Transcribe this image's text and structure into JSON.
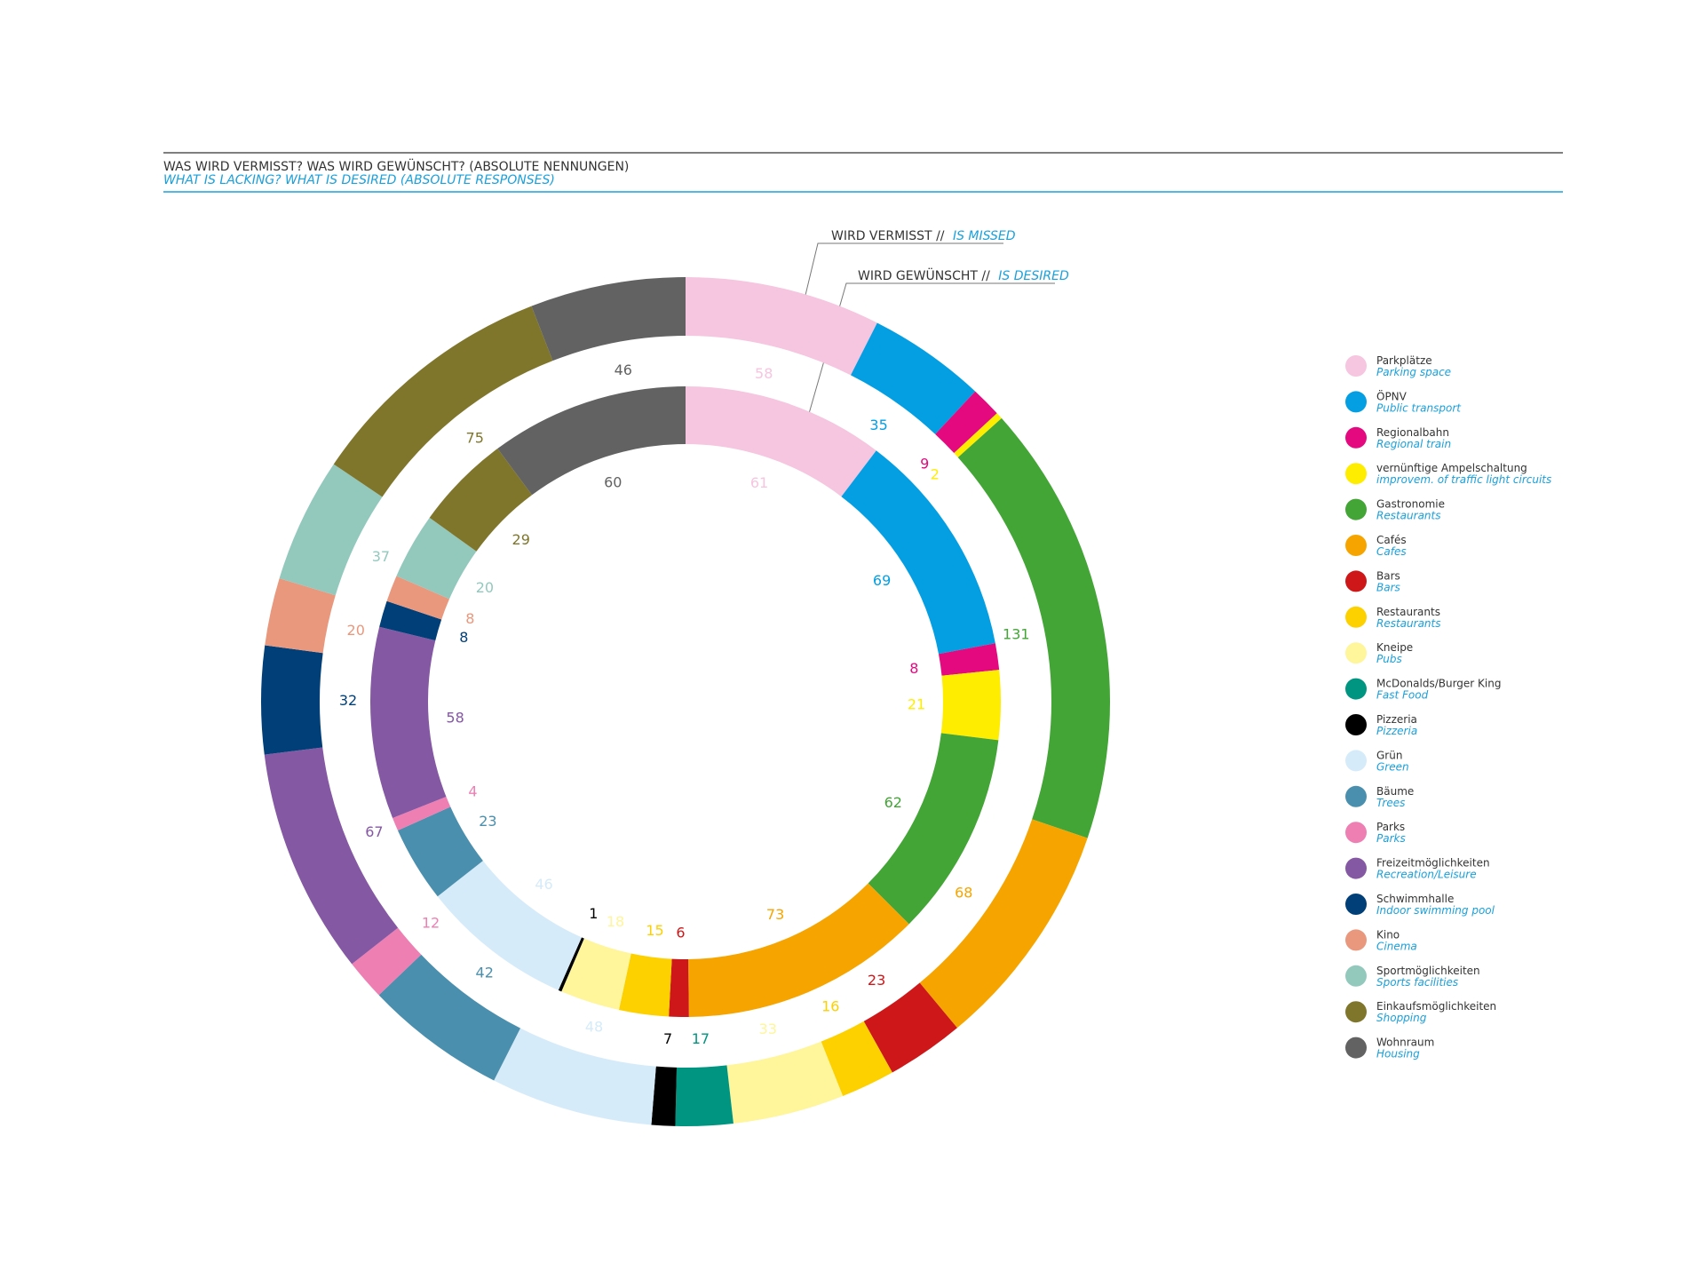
{
  "header": {
    "title_de": "WAS WIRD VERMISST? WAS WIRD GEWÜNSCHT? (ABSOLUTE NENNUNGEN)",
    "title_en": "WHAT IS LACKING? WHAT IS DESIRED (ABSOLUTE RESPONSES)"
  },
  "ring_labels": {
    "outer_de": "WIRD VERMISST //",
    "outer_en": "IS MISSED",
    "inner_de": "WIRD GEWÜNSCHT //",
    "inner_en": "IS DESIRED"
  },
  "colors": {
    "header_rule": "#555555",
    "accent_blue": "#1aa0dc",
    "text_dark": "#333333"
  },
  "chart_data": {
    "type": "pie",
    "variant": "double-ring-donut",
    "categories": [
      {
        "de": "Parkplätze",
        "en": "Parking space",
        "color": "#f6c5df"
      },
      {
        "de": "ÖPNV",
        "en": "Public transport",
        "color": "#049fe3"
      },
      {
        "de": "Regionalbahn",
        "en": "Regional train",
        "color": "#e5097f"
      },
      {
        "de": "vernünftige Ampelschaltung",
        "en": "improvem. of traffic light circuits",
        "color": "#ffed00"
      },
      {
        "de": "Gastronomie",
        "en": "Restaurants",
        "color": "#43a536"
      },
      {
        "de": "Cafés",
        "en": "Cafes",
        "color": "#f6a500"
      },
      {
        "de": "Bars",
        "en": "Bars",
        "color": "#cd1719"
      },
      {
        "de": "Restaurants",
        "en": "Restaurants",
        "color": "#fdd000"
      },
      {
        "de": "Kneipe",
        "en": "Pubs",
        "color": "#fff59b"
      },
      {
        "de": "McDonalds/Burger King",
        "en": "Fast Food",
        "color": "#009581"
      },
      {
        "de": "Pizzeria",
        "en": "Pizzeria",
        "color": "#000000"
      },
      {
        "de": "Grün",
        "en": "Green",
        "color": "#d5ebf9"
      },
      {
        "de": "Bäume",
        "en": "Trees",
        "color": "#4a8fad"
      },
      {
        "de": "Parks",
        "en": "Parks",
        "color": "#ee7fb3"
      },
      {
        "de": "Freizeitmöglichkeiten",
        "en": "Recreation/Leisure",
        "color": "#8458a2"
      },
      {
        "de": "Schwimmhalle",
        "en": "Indoor swimming pool",
        "color": "#003f78"
      },
      {
        "de": "Kino",
        "en": "Cinema",
        "color": "#e9987d"
      },
      {
        "de": "Sportmöglichkeiten",
        "en": "Sports facilities",
        "color": "#93c9bd"
      },
      {
        "de": "Einkaufsmöglichkeiten",
        "en": "Shopping",
        "color": "#7f762c"
      },
      {
        "de": "Wohnraum",
        "en": "Housing",
        "color": "#626262"
      }
    ],
    "series": [
      {
        "ring": "outer",
        "values": [
          58,
          35,
          9,
          2,
          131,
          68,
          23,
          16,
          33,
          17,
          7,
          48,
          42,
          12,
          67,
          32,
          20,
          37,
          75,
          46
        ]
      },
      {
        "ring": "inner",
        "values": [
          61,
          69,
          8,
          21,
          62,
          73,
          6,
          15,
          18,
          0,
          1,
          46,
          23,
          4,
          58,
          8,
          8,
          20,
          29,
          60
        ]
      }
    ],
    "start": "12 o'clock",
    "direction": "clockwise",
    "legend_position": "right"
  }
}
